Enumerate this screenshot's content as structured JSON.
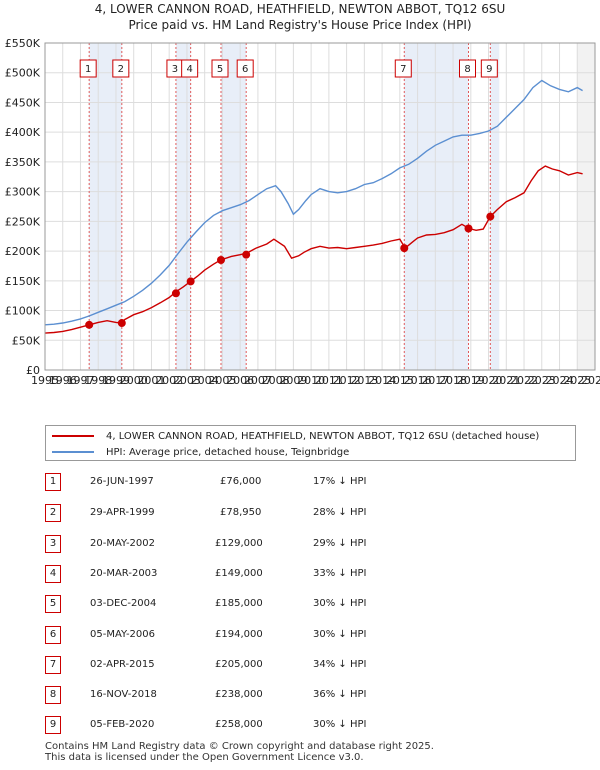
{
  "title_line1": "4, LOWER CANNON ROAD, HEATHFIELD, NEWTON ABBOT, TQ12 6SU",
  "title_line2": "Price paid vs. HM Land Registry's House Price Index (HPI)",
  "colors": {
    "property": "#cc0000",
    "hpi": "#5b8fd1",
    "band": "#e8eef8",
    "vline": "#e05a5a",
    "grid": "#dddddd"
  },
  "chart_data": {
    "type": "line",
    "xlim": [
      1995,
      2026
    ],
    "ylim": [
      0,
      550000
    ],
    "x_ticks": [
      "1995",
      "1996",
      "1997",
      "1998",
      "1999",
      "2000",
      "2001",
      "2002",
      "2003",
      "2004",
      "2005",
      "2006",
      "2007",
      "2008",
      "2009",
      "2010",
      "2011",
      "2012",
      "2013",
      "2014",
      "2015",
      "2016",
      "2017",
      "2018",
      "2019",
      "2020",
      "2021",
      "2022",
      "2023",
      "2024",
      "2025",
      "2026"
    ],
    "y_ticks": [
      {
        "value": 0,
        "label": "£0"
      },
      {
        "value": 50000,
        "label": "£50K"
      },
      {
        "value": 100000,
        "label": "£100K"
      },
      {
        "value": 150000,
        "label": "£150K"
      },
      {
        "value": 200000,
        "label": "£200K"
      },
      {
        "value": 250000,
        "label": "£250K"
      },
      {
        "value": 300000,
        "label": "£300K"
      },
      {
        "value": 350000,
        "label": "£350K"
      },
      {
        "value": 400000,
        "label": "£400K"
      },
      {
        "value": 450000,
        "label": "£450K"
      },
      {
        "value": 500000,
        "label": "£500K"
      },
      {
        "value": 550000,
        "label": "£550K"
      }
    ],
    "series": [
      {
        "name": "property",
        "x": [
          1995.0,
          1995.5,
          1996.0,
          1996.5,
          1997.0,
          1997.5,
          1998.0,
          1998.5,
          1999.0,
          1999.3,
          1999.5,
          2000.0,
          2000.5,
          2001.0,
          2001.5,
          2002.0,
          2002.4,
          2002.8,
          2003.2,
          2003.6,
          2004.0,
          2004.5,
          2004.9,
          2005.5,
          2006.0,
          2006.4,
          2006.9,
          2007.5,
          2007.9,
          2008.5,
          2008.9,
          2009.3,
          2009.6,
          2010.0,
          2010.5,
          2011.0,
          2011.5,
          2012.0,
          2012.5,
          2013.0,
          2013.5,
          2014.0,
          2014.5,
          2015.0,
          2015.3,
          2015.7,
          2016.0,
          2016.5,
          2017.0,
          2017.5,
          2018.0,
          2018.5,
          2018.9,
          2019.3,
          2019.7,
          2020.1,
          2020.5,
          2021.0,
          2021.5,
          2022.0,
          2022.4,
          2022.8,
          2023.2,
          2023.6,
          2024.0,
          2024.5,
          2025.0,
          2025.3
        ],
        "y": [
          62000,
          63000,
          65000,
          68000,
          72000,
          76000,
          80000,
          83000,
          80000,
          79000,
          85000,
          93000,
          98000,
          105000,
          113000,
          122000,
          132000,
          140000,
          149000,
          158000,
          168000,
          178000,
          185000,
          191000,
          194000,
          197000,
          205000,
          212000,
          220000,
          208000,
          188000,
          192000,
          198000,
          204000,
          208000,
          205000,
          206000,
          204000,
          206000,
          208000,
          210000,
          213000,
          217000,
          220000,
          205000,
          215000,
          222000,
          227000,
          228000,
          231000,
          236000,
          245000,
          238000,
          235000,
          237000,
          258000,
          270000,
          283000,
          290000,
          298000,
          318000,
          335000,
          343000,
          338000,
          335000,
          328000,
          332000,
          330000
        ]
      },
      {
        "name": "hpi",
        "x": [
          1995.0,
          1995.5,
          1996.0,
          1996.5,
          1997.0,
          1997.5,
          1998.0,
          1998.5,
          1999.0,
          1999.5,
          2000.0,
          2000.5,
          2001.0,
          2001.5,
          2002.0,
          2002.5,
          2003.0,
          2003.5,
          2004.0,
          2004.5,
          2005.0,
          2005.5,
          2006.0,
          2006.5,
          2007.0,
          2007.5,
          2008.0,
          2008.3,
          2008.7,
          2009.0,
          2009.3,
          2009.7,
          2010.0,
          2010.5,
          2011.0,
          2011.5,
          2012.0,
          2012.5,
          2013.0,
          2013.5,
          2014.0,
          2014.5,
          2015.0,
          2015.5,
          2016.0,
          2016.5,
          2017.0,
          2017.5,
          2018.0,
          2018.5,
          2019.0,
          2019.5,
          2020.0,
          2020.5,
          2021.0,
          2021.5,
          2022.0,
          2022.5,
          2023.0,
          2023.5,
          2024.0,
          2024.5,
          2025.0,
          2025.3
        ],
        "y": [
          76000,
          77000,
          79000,
          82000,
          86000,
          91000,
          97000,
          103000,
          109000,
          115000,
          124000,
          134000,
          146000,
          160000,
          176000,
          196000,
          215000,
          232000,
          248000,
          260000,
          268000,
          273000,
          278000,
          285000,
          295000,
          305000,
          310000,
          300000,
          280000,
          262000,
          270000,
          285000,
          295000,
          305000,
          300000,
          298000,
          300000,
          305000,
          312000,
          315000,
          322000,
          330000,
          340000,
          346000,
          356000,
          368000,
          378000,
          385000,
          392000,
          395000,
          395000,
          398000,
          402000,
          410000,
          425000,
          440000,
          455000,
          475000,
          487000,
          478000,
          472000,
          468000,
          475000,
          470000
        ]
      }
    ],
    "sales": [
      {
        "n": "1",
        "date": "26-JUN-1997",
        "x": 1997.49,
        "price": 76000,
        "price_label": "£76,000",
        "hpi_delta": "17% ↓ HPI"
      },
      {
        "n": "2",
        "date": "29-APR-1999",
        "x": 1999.33,
        "price": 78950,
        "price_label": "£78,950",
        "hpi_delta": "28% ↓ HPI"
      },
      {
        "n": "3",
        "date": "20-MAY-2002",
        "x": 2002.38,
        "price": 129000,
        "price_label": "£129,000",
        "hpi_delta": "29% ↓ HPI"
      },
      {
        "n": "4",
        "date": "20-MAR-2003",
        "x": 2003.21,
        "price": 149000,
        "price_label": "£149,000",
        "hpi_delta": "33% ↓ HPI"
      },
      {
        "n": "5",
        "date": "03-DEC-2004",
        "x": 2004.92,
        "price": 185000,
        "price_label": "£185,000",
        "hpi_delta": "30% ↓ HPI"
      },
      {
        "n": "6",
        "date": "05-MAY-2006",
        "x": 2006.34,
        "price": 194000,
        "price_label": "£194,000",
        "hpi_delta": "30% ↓ HPI"
      },
      {
        "n": "7",
        "date": "02-APR-2015",
        "x": 2015.25,
        "price": 205000,
        "price_label": "£205,000",
        "hpi_delta": "34% ↓ HPI"
      },
      {
        "n": "8",
        "date": "16-NOV-2018",
        "x": 2018.87,
        "price": 238000,
        "price_label": "£238,000",
        "hpi_delta": "36% ↓ HPI"
      },
      {
        "n": "9",
        "date": "05-FEB-2020",
        "x": 2020.1,
        "price": 258000,
        "price_label": "£258,000",
        "hpi_delta": "30% ↓ HPI"
      }
    ]
  },
  "legend": {
    "property_label": "4, LOWER CANNON ROAD, HEATHFIELD, NEWTON ABBOT, TQ12 6SU (detached house)",
    "hpi_label": "HPI: Average price, detached house, Teignbridge"
  },
  "footer": {
    "line1": "Contains HM Land Registry data © Crown copyright and database right 2025.",
    "line2": "This data is licensed under the Open Government Licence v3.0."
  }
}
